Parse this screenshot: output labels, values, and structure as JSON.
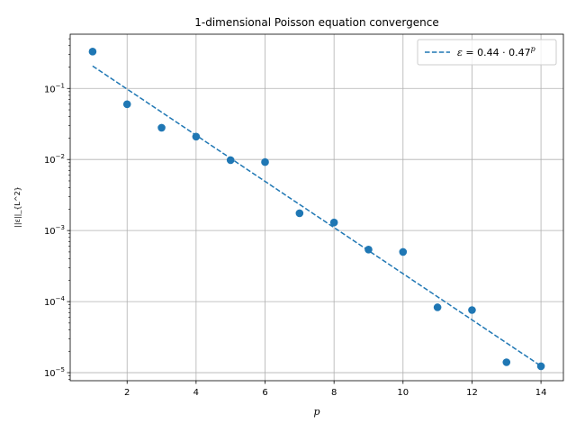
{
  "chart_data": {
    "type": "scatter",
    "title": "1-dimensional Poisson equation convergence",
    "xlabel": "p",
    "ylabel": "||ε||_{L^2}",
    "xlim": [
      0.35,
      14.65
    ],
    "ylim": [
      7.7e-06,
      0.58
    ],
    "yscale": "log",
    "grid": true,
    "legend_position": "top-right",
    "x_ticks": [
      "2",
      "4",
      "6",
      "8",
      "10",
      "12",
      "14"
    ],
    "y_ticks": [
      {
        "base": "10",
        "exp": "−5",
        "value": 1e-05
      },
      {
        "base": "10",
        "exp": "−4",
        "value": 0.0001
      },
      {
        "base": "10",
        "exp": "−3",
        "value": 0.001
      },
      {
        "base": "10",
        "exp": "−2",
        "value": 0.01
      },
      {
        "base": "10",
        "exp": "−1",
        "value": 0.1
      }
    ],
    "series": [
      {
        "kind": "scatter",
        "color": "#1f77b4",
        "x": [
          1,
          2,
          3,
          4,
          5,
          6,
          7,
          8,
          9,
          10,
          11,
          12,
          13,
          14
        ],
        "y": [
          0.33,
          0.06,
          0.028,
          0.021,
          0.0098,
          0.0092,
          0.00175,
          0.0013,
          0.00054,
          0.0005,
          8.3e-05,
          7.6e-05,
          1.4e-05,
          1.23e-05
        ]
      },
      {
        "kind": "line",
        "style": "dashed",
        "color": "#1f77b4",
        "name": "ε = 0.44 · 0.47^p",
        "x": [
          1,
          14
        ],
        "y": [
          0.2068,
          1.24e-05
        ]
      }
    ],
    "legend_label": {
      "eps": "ε",
      "eq": " = 0.44 · 0.47",
      "sup": "p"
    }
  }
}
